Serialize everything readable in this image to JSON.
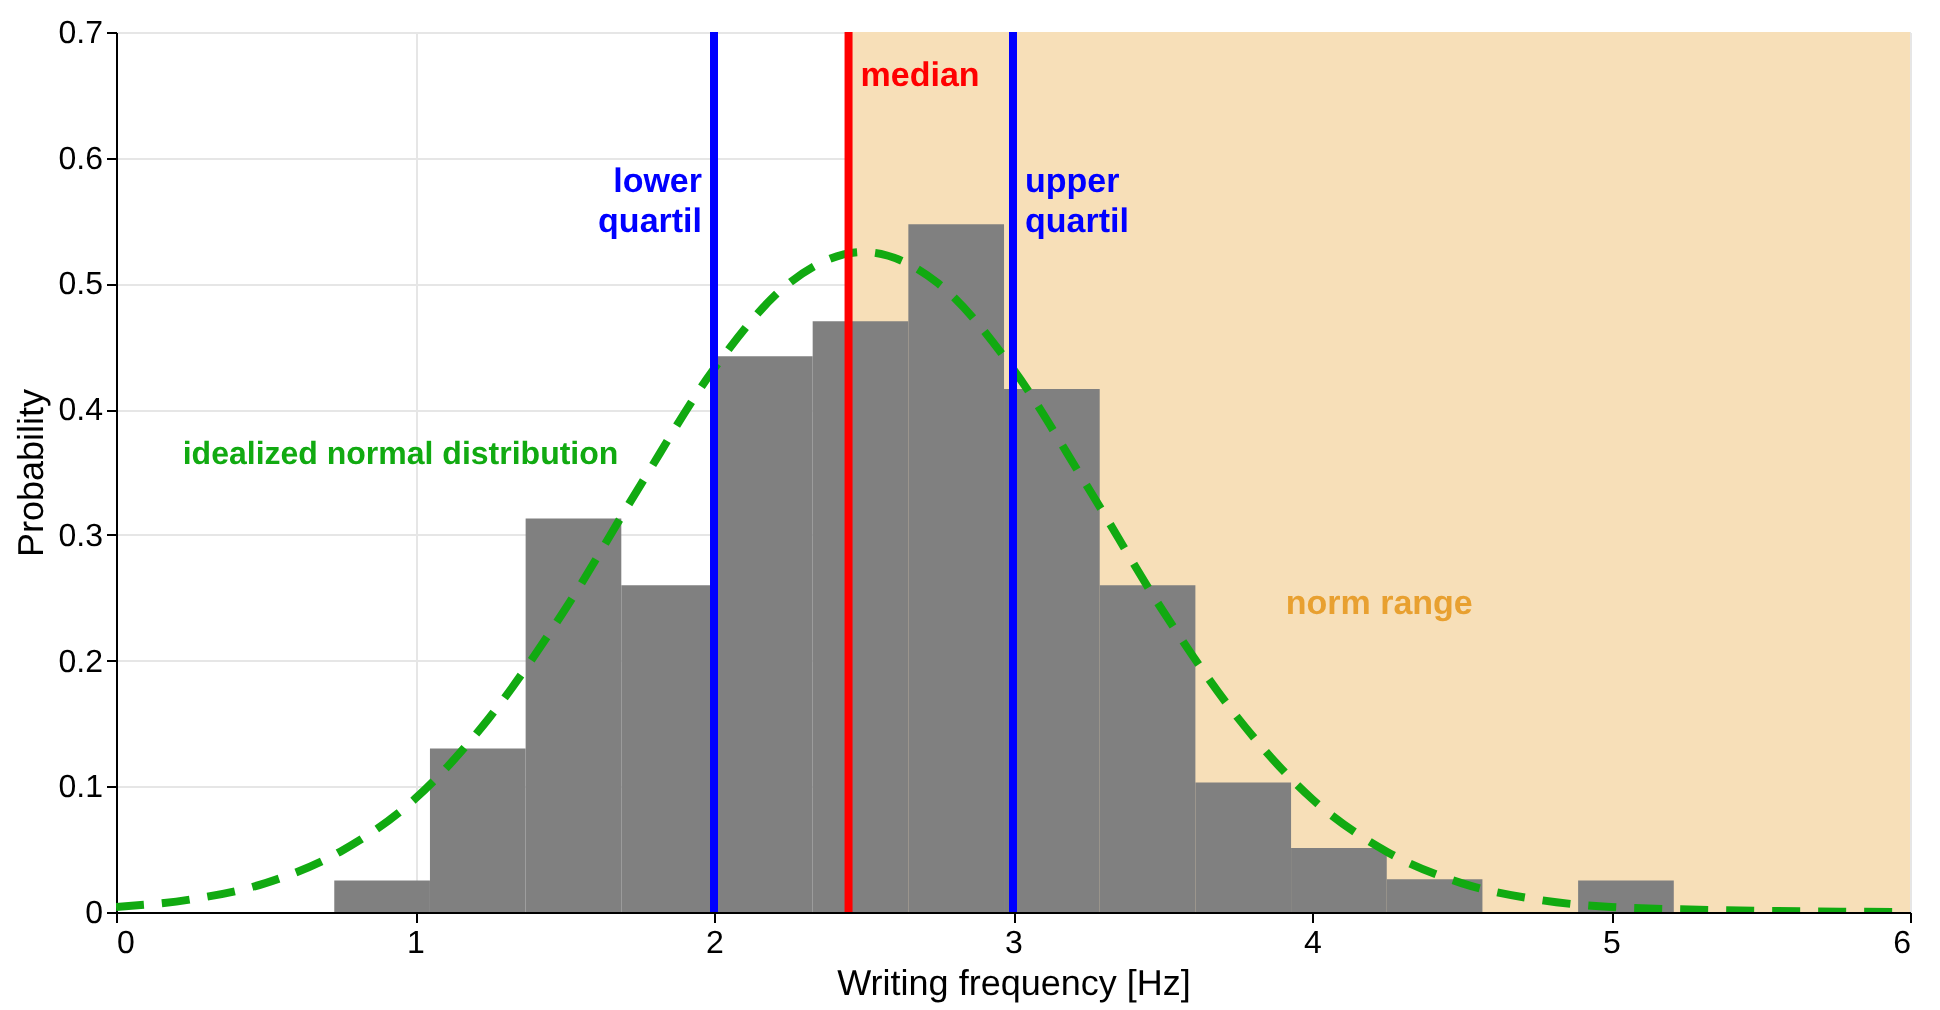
{
  "chart_data": {
    "type": "histogram",
    "xlabel": "Writing frequency [Hz]",
    "ylabel": "Probability",
    "bins": [
      0.73,
      1.05,
      1.37,
      1.69,
      2.01,
      2.33,
      2.65,
      2.97,
      3.29,
      3.61,
      3.93,
      4.25,
      4.57,
      4.89,
      5.21
    ],
    "values": [
      0.025,
      0.13,
      0.313,
      0.26,
      0.442,
      0.47,
      0.547,
      0.416,
      0.26,
      0.103,
      0.051,
      0.026,
      0,
      0.025
    ],
    "color": "#808080",
    "series": [
      {
        "type": "line",
        "name": "idealized normal distribution",
        "color": "#11aa11",
        "line_style": "dashed",
        "x": [
          0,
          0.25,
          0.5,
          0.75,
          1,
          1.25,
          1.5,
          1.75,
          2,
          2.25,
          2.5,
          2.75,
          3,
          3.25,
          3.5,
          3.75,
          4,
          4.25,
          4.5,
          4.75,
          5,
          5.5,
          6
        ],
        "values": [
          0.004,
          0.01,
          0.023,
          0.048,
          0.09,
          0.155,
          0.24,
          0.338,
          0.432,
          0.5,
          0.525,
          0.5,
          0.432,
          0.338,
          0.24,
          0.155,
          0.09,
          0.048,
          0.023,
          0.01,
          0.004,
          0.001,
          0
        ]
      }
    ],
    "ref_lines": [
      {
        "axis": "x",
        "value": 2,
        "label": "lower quartil",
        "color": "#0000ff"
      },
      {
        "axis": "x",
        "value": 2.45,
        "label": "median",
        "color": "#ff0000"
      },
      {
        "axis": "x",
        "value": 3,
        "label": "upper quartil",
        "color": "#0000ff"
      }
    ],
    "bands": [
      {
        "axis": "x",
        "from": 2.45,
        "to": 6,
        "label": "norm range",
        "color": "#f7dfb8"
      }
    ],
    "xlim": [
      0,
      6
    ],
    "ylim": [
      0,
      0.7
    ],
    "xticks": [
      0,
      1,
      2,
      3,
      4,
      5,
      6
    ],
    "yticks": [
      0,
      0.1,
      0.2,
      0.3,
      0.4,
      0.5,
      0.6,
      0.7
    ],
    "grid": true
  }
}
